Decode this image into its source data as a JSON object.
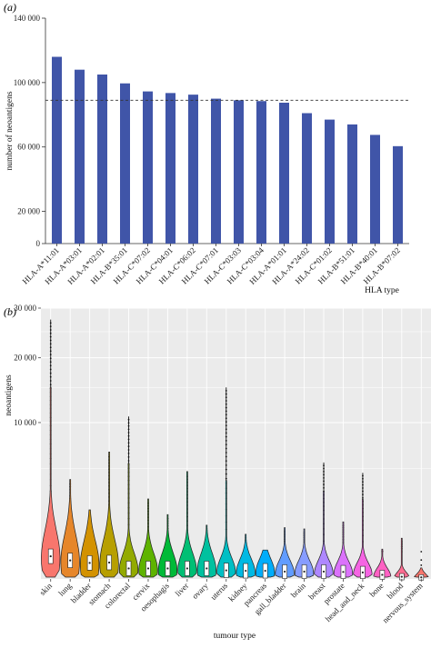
{
  "panels": {
    "a_label": "(a)",
    "b_label": "(b)"
  },
  "chart_data": [
    {
      "type": "bar",
      "panel": "(a)",
      "title": "",
      "xlabel": "HLA type",
      "ylabel": "number of neoantigens",
      "categories": [
        "HLA-A*11:01",
        "HLA-A*03:01",
        "HLA-A*02:01",
        "HLA-B*35:01",
        "HLA-C*07:02",
        "HLA-C*04:01",
        "HLA-C*06:02",
        "HLA-C*07:01",
        "HLA-C*03:03",
        "HLA-C*03:04",
        "HLA-A*01:01",
        "HLA-A*24:02",
        "HLA-C*01:02",
        "HLA-B*51:01",
        "HLA-B*40:01",
        "HLA-B*07:02"
      ],
      "values": [
        116000,
        108000,
        105000,
        99500,
        94500,
        93500,
        92500,
        90000,
        89000,
        88500,
        87500,
        81000,
        77000,
        74000,
        67500,
        60500
      ],
      "ylim": [
        0,
        140000
      ],
      "yticks": [
        0,
        20000,
        60000,
        100000,
        140000
      ],
      "ytick_labels": [
        "0",
        "20 000",
        "60 000",
        "100 000",
        "140 000"
      ],
      "reference_line": 89000,
      "bar_color": "#4055a8",
      "grid": false
    },
    {
      "type": "violin",
      "panel": "(b)",
      "title": "",
      "xlabel": "tumour type",
      "ylabel": "neoantigens",
      "yscale": "sqrt",
      "ylim": [
        0,
        30000
      ],
      "yticks": [
        10000,
        20000,
        30000
      ],
      "ytick_labels": [
        "10 000",
        "20 000",
        "30 000"
      ],
      "grid": true,
      "categories": [
        "skin",
        "lung",
        "bladder",
        "stomach",
        "colorectal",
        "cervix",
        "oesophagis",
        "liver",
        "ovary",
        "uterus",
        "kidney",
        "pancreas",
        "gall_bladder",
        "brain",
        "breast",
        "prostate",
        "head_and_neck",
        "bone",
        "blood",
        "nervous_system"
      ],
      "max_values": [
        27500,
        3900,
        1850,
        6400,
        10800,
        2500,
        1600,
        4550,
        1100,
        15000,
        750,
        300,
        1000,
        950,
        5550,
        1250,
        4600,
        320,
        620,
        35
      ],
      "median_values": [
        210,
        140,
        105,
        110,
        45,
        45,
        45,
        45,
        45,
        30,
        27,
        27,
        22,
        22,
        22,
        20,
        17,
        7,
        2,
        1
      ],
      "colors": [
        "#f8766d",
        "#e6862a",
        "#d39200",
        "#b79f00",
        "#93aa00",
        "#5eb300",
        "#00ba38",
        "#00bf74",
        "#00c19f",
        "#00bfc4",
        "#00b9e3",
        "#00adfa",
        "#619cff",
        "#879cff",
        "#ae87ff",
        "#db72fb",
        "#f564e3",
        "#ff61c3",
        "#ff6c91",
        "#f8766d"
      ]
    }
  ]
}
